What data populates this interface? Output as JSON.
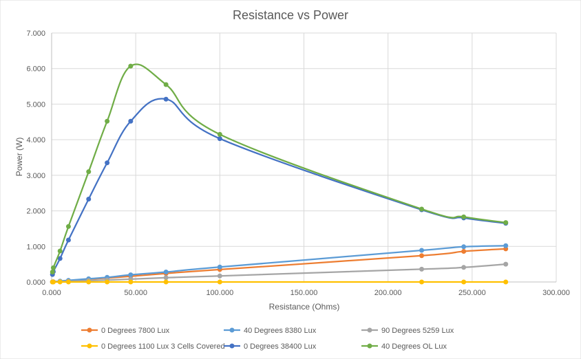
{
  "chart_data": {
    "type": "scatter",
    "title": "Resistance vs Power",
    "xlabel": "Resistance (Ohms)",
    "ylabel": "Power (W)",
    "xlim": [
      0,
      300
    ],
    "ylim": [
      0,
      7
    ],
    "x_ticks": [
      0,
      50,
      100,
      150,
      200,
      250,
      300
    ],
    "x_tick_labels": [
      "0.000",
      "50.000",
      "100.000",
      "150.000",
      "200.000",
      "250.000",
      "300.000"
    ],
    "y_ticks": [
      0,
      1,
      2,
      3,
      4,
      5,
      6,
      7
    ],
    "y_tick_labels": [
      "0.000",
      "1.000",
      "2.000",
      "3.000",
      "4.000",
      "5.000",
      "6.000",
      "7.000"
    ],
    "grid": true,
    "legend_position": "bottom",
    "series": [
      {
        "name": "0 Degrees 7800 Lux",
        "color": "#ED7D31",
        "x": [
          0.5,
          1,
          5,
          10,
          22,
          33,
          47,
          68,
          100,
          220,
          245,
          270
        ],
        "y": [
          0.002,
          0.005,
          0.02,
          0.035,
          0.08,
          0.11,
          0.16,
          0.24,
          0.35,
          0.74,
          0.86,
          0.93
        ]
      },
      {
        "name": "40 Degrees 8380 Lux",
        "color": "#5B9BD5",
        "x": [
          0.5,
          1,
          5,
          10,
          22,
          33,
          47,
          68,
          100,
          220,
          245,
          270
        ],
        "y": [
          0.003,
          0.006,
          0.025,
          0.045,
          0.09,
          0.13,
          0.2,
          0.28,
          0.42,
          0.89,
          0.99,
          1.02
        ]
      },
      {
        "name": "90 Degrees 5259 Lux",
        "color": "#A5A5A5",
        "x": [
          0.5,
          1,
          5,
          10,
          22,
          33,
          47,
          68,
          100,
          220,
          245,
          270
        ],
        "y": [
          0.001,
          0.003,
          0.012,
          0.02,
          0.04,
          0.055,
          0.08,
          0.12,
          0.17,
          0.36,
          0.41,
          0.5
        ]
      },
      {
        "name": "0 Degrees 1100 Lux 3 Cells Covered",
        "color": "#FFC000",
        "x": [
          0.5,
          1,
          5,
          10,
          22,
          33,
          47,
          68,
          100,
          220,
          245,
          270
        ],
        "y": [
          0,
          0,
          0,
          0,
          0,
          0,
          0,
          0,
          0,
          0,
          0,
          0
        ]
      },
      {
        "name": "0 Degrees 38400 Lux",
        "color": "#4472C4",
        "x": [
          0.5,
          1,
          5,
          10,
          22,
          33,
          47,
          68,
          100,
          220,
          245,
          270
        ],
        "y": [
          0.21,
          0.29,
          0.66,
          1.18,
          2.33,
          3.35,
          4.52,
          5.14,
          4.03,
          2.03,
          1.8,
          1.65
        ]
      },
      {
        "name": "40 Degrees OL Lux",
        "color": "#70AD47",
        "x": [
          0.5,
          1,
          5,
          10,
          22,
          33,
          47,
          68,
          100,
          220,
          245,
          270
        ],
        "y": [
          0.28,
          0.4,
          0.87,
          1.56,
          3.1,
          4.52,
          6.07,
          5.55,
          4.15,
          2.05,
          1.83,
          1.67
        ]
      }
    ]
  }
}
